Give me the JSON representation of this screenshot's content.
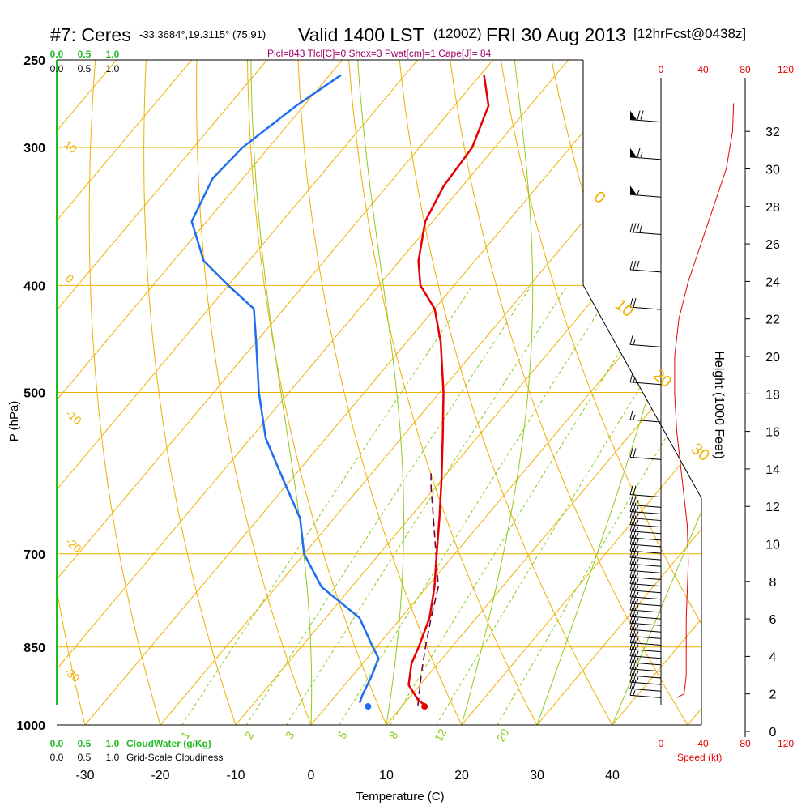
{
  "header": {
    "station": "#7: Ceres",
    "coords": "-33.3684°,19.3115° (75,91)",
    "valid": "Valid 1400 LST",
    "zulu": "(1200Z)",
    "date": "FRI 30 Aug 2013",
    "forecast": "[12hrFcst@0438z]"
  },
  "stats_line": "Plcl=843 Tlcl[C]=0 Shox=3 Pwat[cm]=1 Cape[J]= 84",
  "colors": {
    "isotherm_isobar": "#f0b000",
    "dry_adiabat": "#f0b000",
    "moist_adiabat": "#8ccc1c",
    "mixing_ratio": "#8ccc1c",
    "temperature": "#e60000",
    "dewpoint": "#1e6ef0",
    "parcel": "#700040",
    "cloud_axis": "#22bb22",
    "speed": "#e60000"
  },
  "chart_data": {
    "type": "line",
    "subtype": "skew-T log-P sounding",
    "xlabel": "Temperature (C)",
    "ylabel": "P (hPa)",
    "right_ylabel": "Height (1000 Feet)",
    "x_ticks": [
      -30,
      -20,
      -10,
      0,
      10,
      20,
      30,
      40
    ],
    "pressure_ticks": [
      250,
      300,
      400,
      500,
      700,
      850,
      1000
    ],
    "height_ticks": [
      0,
      2,
      4,
      6,
      8,
      10,
      12,
      14,
      16,
      18,
      20,
      22,
      24,
      26,
      28,
      30,
      32
    ],
    "dry_adiabat_labels": [
      "10",
      "0",
      "-10",
      "-20",
      "-30",
      "0",
      "10",
      "20",
      "30"
    ],
    "mixing_ratio_labels": [
      "1",
      "2",
      "3",
      "5",
      "8",
      "12",
      "20"
    ],
    "cloud_axis_labels_top": [
      "0.0",
      "0.5",
      "1.0"
    ],
    "cloud_axis_labels_top2": [
      "0.0",
      "0.5",
      "1.0"
    ],
    "cloud_axis_labels_bottom": [
      "0.0",
      "0.5",
      "1.0"
    ],
    "cloud_axis_labels_bottom2": [
      "0.0",
      "0.5",
      "1.0"
    ],
    "cloudwater_label": "CloudWater (g/Kg)",
    "cloudiness_label": "Grid-Scale Cloudiness",
    "speed_ticks_top": [
      "0",
      "40",
      "80",
      "120"
    ],
    "speed_ticks_bottom": [
      "0",
      "40",
      "80",
      "120"
    ],
    "speed_label": "Speed (kt)",
    "temperature_profile": [
      {
        "p": 960,
        "t": 13.0
      },
      {
        "p": 950,
        "t": 11.5
      },
      {
        "p": 920,
        "t": 8.5
      },
      {
        "p": 880,
        "t": 6.5
      },
      {
        "p": 850,
        "t": 5.6
      },
      {
        "p": 800,
        "t": 3.8
      },
      {
        "p": 750,
        "t": 1.0
      },
      {
        "p": 700,
        "t": -2.4
      },
      {
        "p": 650,
        "t": -6.0
      },
      {
        "p": 600,
        "t": -10.0
      },
      {
        "p": 550,
        "t": -14.5
      },
      {
        "p": 500,
        "t": -19.5
      },
      {
        "p": 450,
        "t": -25.5
      },
      {
        "p": 420,
        "t": -30.0
      },
      {
        "p": 400,
        "t": -34.5
      },
      {
        "p": 380,
        "t": -37.5
      },
      {
        "p": 350,
        "t": -41.0
      },
      {
        "p": 325,
        "t": -42.5
      },
      {
        "p": 300,
        "t": -43.0
      },
      {
        "p": 275,
        "t": -45.5
      },
      {
        "p": 258,
        "t": -49.5
      }
    ],
    "dewpoint_profile": [
      {
        "p": 955,
        "t": 4.0
      },
      {
        "p": 940,
        "t": 3.5
      },
      {
        "p": 900,
        "t": 2.5
      },
      {
        "p": 870,
        "t": 1.5
      },
      {
        "p": 850,
        "t": -0.5
      },
      {
        "p": 800,
        "t": -5.5
      },
      {
        "p": 750,
        "t": -14.0
      },
      {
        "p": 700,
        "t": -20.0
      },
      {
        "p": 650,
        "t": -24.5
      },
      {
        "p": 600,
        "t": -31.0
      },
      {
        "p": 550,
        "t": -38.0
      },
      {
        "p": 500,
        "t": -44.0
      },
      {
        "p": 450,
        "t": -50.0
      },
      {
        "p": 420,
        "t": -54.0
      },
      {
        "p": 400,
        "t": -60.0
      },
      {
        "p": 380,
        "t": -66.0
      },
      {
        "p": 350,
        "t": -72.0
      },
      {
        "p": 320,
        "t": -74.0
      },
      {
        "p": 300,
        "t": -73.5
      },
      {
        "p": 275,
        "t": -71.0
      },
      {
        "p": 258,
        "t": -68.5
      }
    ],
    "parcel_profile": [
      {
        "p": 960,
        "t": 12.0
      },
      {
        "p": 900,
        "t": 9.0
      },
      {
        "p": 850,
        "t": 6.5
      },
      {
        "p": 800,
        "t": 4.0
      },
      {
        "p": 750,
        "t": 1.5
      },
      {
        "p": 700,
        "t": -2.5
      },
      {
        "p": 650,
        "t": -6.8
      },
      {
        "p": 610,
        "t": -10.5
      },
      {
        "p": 590,
        "t": -12.3
      }
    ],
    "surface_temperature": 13.0,
    "surface_dewpoint": 5.5,
    "surface_pressure": 962,
    "wind_speed_profile": [
      {
        "h": 1.8,
        "kt": 15
      },
      {
        "h": 2.0,
        "kt": 22
      },
      {
        "h": 3.0,
        "kt": 24
      },
      {
        "h": 6.0,
        "kt": 24
      },
      {
        "h": 9.0,
        "kt": 26
      },
      {
        "h": 11.0,
        "kt": 25
      },
      {
        "h": 13.0,
        "kt": 21
      },
      {
        "h": 16.0,
        "kt": 15
      },
      {
        "h": 18.0,
        "kt": 13
      },
      {
        "h": 20.0,
        "kt": 13
      },
      {
        "h": 22.0,
        "kt": 17
      },
      {
        "h": 24.0,
        "kt": 26
      },
      {
        "h": 26.0,
        "kt": 38
      },
      {
        "h": 28.0,
        "kt": 50
      },
      {
        "h": 30.0,
        "kt": 62
      },
      {
        "h": 32.0,
        "kt": 68
      },
      {
        "h": 33.5,
        "kt": 69
      }
    ]
  }
}
